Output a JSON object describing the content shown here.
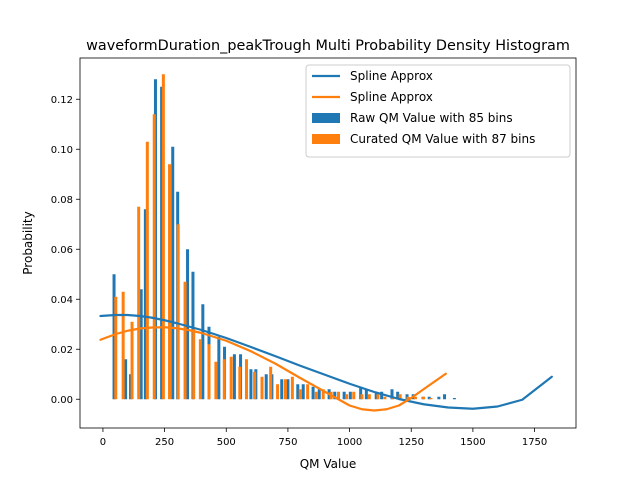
{
  "chart_data": {
    "type": "bar",
    "title": "waveformDuration_peakTrough Multi Probability Density Histogram",
    "xlabel": "QM Value",
    "ylabel": "Probability",
    "xlim": [
      -93,
      1918
    ],
    "ylim": [
      -0.0115,
      0.1365
    ],
    "xticks": [
      0,
      250,
      500,
      750,
      1000,
      1250,
      1500,
      1750
    ],
    "xtick_labels": [
      "0",
      "250",
      "500",
      "750",
      "1000",
      "1250",
      "1500",
      "1750"
    ],
    "yticks": [
      0.0,
      0.02,
      0.04,
      0.06,
      0.08,
      0.1,
      0.12
    ],
    "ytick_labels": [
      "0.00",
      "0.02",
      "0.04",
      "0.06",
      "0.08",
      "0.10",
      "0.12"
    ],
    "grid": false,
    "legend_position": "top-right",
    "series": [
      {
        "name": "Raw QM Value with 85 bins",
        "kind": "bar",
        "color": "#1f77b4",
        "x": [
          45,
          92,
          112,
          155,
          172,
          213,
          238,
          283,
          303,
          343,
          365,
          405,
          430,
          470,
          493,
          533,
          558,
          600,
          620,
          662,
          685,
          725,
          750,
          790,
          812,
          852,
          877,
          917,
          940,
          978,
          1003,
          1045,
          1068,
          1108,
          1130,
          1172,
          1195,
          1233,
          1258,
          1298,
          1323,
          1362,
          1385,
          1425
        ],
        "y": [
          0.05,
          0.016,
          0.01,
          0.044,
          0.076,
          0.128,
          0.125,
          0.101,
          0.083,
          0.06,
          0.051,
          0.038,
          0.029,
          0.025,
          0.021,
          0.018,
          0.018,
          0.012,
          0.012,
          0.01,
          0.01,
          0.008,
          0.008,
          0.006,
          0.006,
          0.005,
          0.004,
          0.004,
          0.003,
          0.003,
          0.003,
          0.005,
          0.004,
          0.003,
          0.003,
          0.004,
          0.003,
          0.002,
          0.002,
          0.001,
          0.001,
          0.001,
          0.002,
          0.0005
        ]
      },
      {
        "name": "Curated QM Value with 87 bins",
        "kind": "bar",
        "color": "#ff7f0e",
        "x": [
          52,
          82,
          118,
          145,
          180,
          208,
          245,
          270,
          305,
          333,
          368,
          395,
          430,
          458,
          492,
          520,
          555,
          582,
          615,
          645,
          680,
          708,
          740,
          768,
          800,
          830,
          865,
          893,
          925,
          955,
          988,
          1017,
          1050,
          1080,
          1115,
          1143,
          1175,
          1205,
          1237,
          1267,
          1300,
          1330
        ],
        "y": [
          0.041,
          0.043,
          0.031,
          0.077,
          0.103,
          0.114,
          0.13,
          0.094,
          0.07,
          0.047,
          0.028,
          0.024,
          0.022,
          0.015,
          0.016,
          0.017,
          0.013,
          0.016,
          0.011,
          0.009,
          0.013,
          0.006,
          0.008,
          0.009,
          0.004,
          0.006,
          0.003,
          0.004,
          0.003,
          0.003,
          0.002,
          0.003,
          0.002,
          0.002,
          0.002,
          0.001,
          0.001,
          0.002,
          0.001,
          0.001,
          0.001,
          0.0005
        ]
      },
      {
        "name": "Spline Approx",
        "kind": "line",
        "color": "#1f77b4",
        "x": [
          -10,
          50,
          100,
          150,
          200,
          250,
          300,
          400,
          500,
          600,
          700,
          800,
          900,
          1000,
          1100,
          1200,
          1300,
          1400,
          1500,
          1600,
          1700,
          1820
        ],
        "y": [
          0.0333,
          0.0337,
          0.0337,
          0.0333,
          0.0326,
          0.0316,
          0.0304,
          0.0277,
          0.0245,
          0.0209,
          0.0172,
          0.0134,
          0.0098,
          0.0062,
          0.0029,
          0.0001,
          -0.002,
          -0.0033,
          -0.0038,
          -0.0029,
          -0.0002,
          0.009
        ]
      },
      {
        "name": "Spline Approx",
        "kind": "line",
        "color": "#ff7f0e",
        "x": [
          -10,
          50,
          100,
          150,
          200,
          250,
          300,
          350,
          400,
          500,
          600,
          700,
          800,
          900,
          1000,
          1050,
          1100,
          1150,
          1200,
          1250,
          1300,
          1390
        ],
        "y": [
          0.0238,
          0.026,
          0.0274,
          0.0283,
          0.0287,
          0.0288,
          0.0284,
          0.0276,
          0.0265,
          0.0234,
          0.0192,
          0.0142,
          0.0085,
          0.003,
          -0.0025,
          -0.004,
          -0.0045,
          -0.004,
          -0.0025,
          0.0005,
          0.004,
          0.0102
        ]
      }
    ],
    "legend": [
      {
        "label": "Spline Approx",
        "kind": "line",
        "color": "#1f77b4"
      },
      {
        "label": "Spline Approx",
        "kind": "line",
        "color": "#ff7f0e"
      },
      {
        "label": "Raw QM Value with 85 bins",
        "kind": "bar",
        "color": "#1f77b4"
      },
      {
        "label": "Curated QM Value with 87 bins",
        "kind": "bar",
        "color": "#ff7f0e"
      }
    ]
  }
}
